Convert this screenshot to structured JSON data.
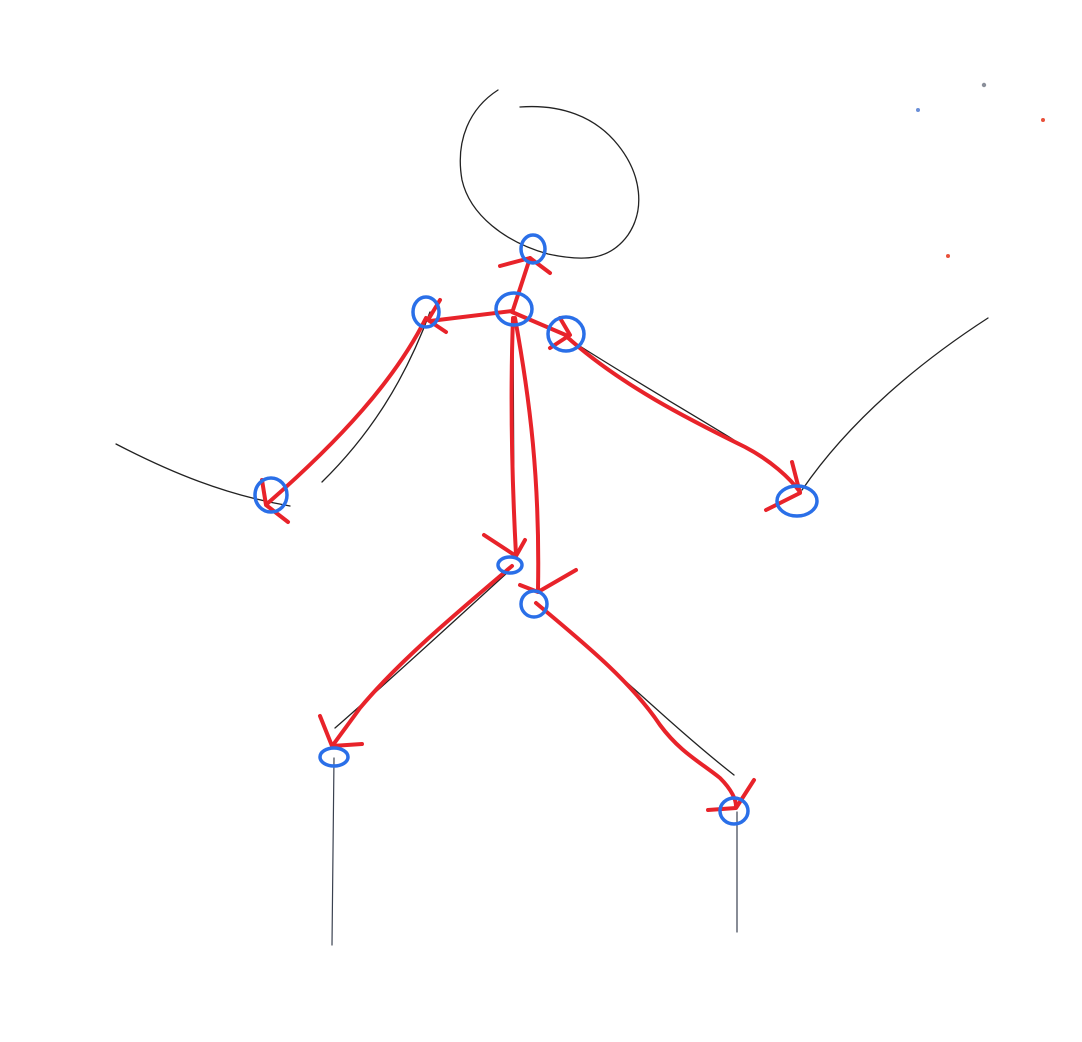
{
  "canvas": {
    "background": "#ffffff"
  },
  "colors": {
    "sketch": "#222222",
    "bones": "#e8232a",
    "joints": "#2a6fe8",
    "dot_blue": "#6a8fd8",
    "dot_grey": "#8a8f9a",
    "dot_red": "#e8503a"
  },
  "figure": {
    "description_visible_text": ""
  }
}
